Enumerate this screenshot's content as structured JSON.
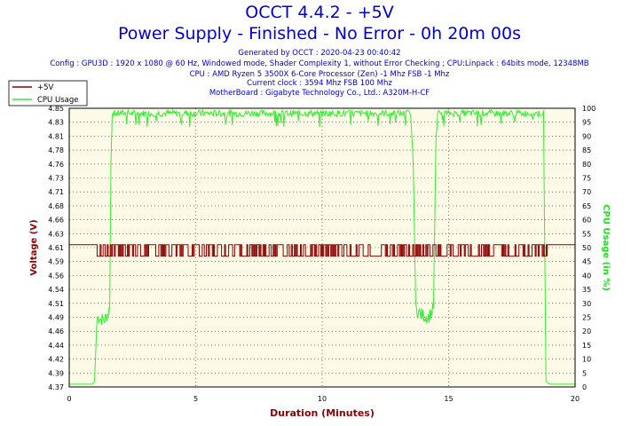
{
  "header": {
    "title": "OCCT 4.4.2 - +5V",
    "subtitle": "Power Supply - Finished - No Error - 0h 20m 00s",
    "lines": [
      "Generated by OCCT : 2020-04-23 00:40:42",
      "Config : GPU3D : 1920 x 1080 @ 60 Hz, Windowed mode, Shader Complexity 1, without Error Checking ; CPU:Linpack : 64bits mode, 12348MB",
      "CPU : AMD Ryzen 5 3500X 6-Core Processor (Zen) -1 Mhz FSB -1 Mhz",
      "Current clock : 3594 Mhz FSB 100 Mhz",
      "MotherBoard : Gigabyte Technology Co., Ltd.: A320M-H-CF"
    ]
  },
  "colors": {
    "voltage": "#8b0000",
    "cpu": "#33ee33",
    "plot_bg": "#fdfbe8",
    "grid": "#2a2a00",
    "left_axis": "#8b0000",
    "right_axis": "#22dd22",
    "x_axis_label": "#8b0000"
  },
  "chart_data": {
    "type": "line",
    "title": "OCCT 4.4.2 - +5V",
    "subtitle": "Power Supply - Finished - No Error - 0h 20m 00s",
    "xlabel": "Duration (Minutes)",
    "ylabel_left": "Voltage (V)",
    "ylabel_right": "CPU Usage (in %)",
    "xlim": [
      0,
      20
    ],
    "x_ticks": [
      "0",
      "5",
      "10",
      "15",
      "20"
    ],
    "ylim_left": [
      4.37,
      4.86
    ],
    "y_ticks_left": [
      "4.37",
      "4.39",
      "4.42",
      "4.44",
      "4.46",
      "4.49",
      "4.51",
      "4.54",
      "4.56",
      "4.59",
      "4.61",
      "4.63",
      "4.66",
      "4.68",
      "4.71",
      "4.73",
      "4.76",
      "4.78",
      "4.81",
      "4.83",
      "4.85"
    ],
    "ylim_right": [
      0,
      100
    ],
    "y_ticks_right": [
      "0",
      "5",
      "10",
      "15",
      "20",
      "25",
      "30",
      "35",
      "40",
      "45",
      "50",
      "55",
      "60",
      "65",
      "70",
      "75",
      "80",
      "85",
      "90",
      "95",
      "100"
    ],
    "grid": true,
    "legend_position": "top-left",
    "series": [
      {
        "name": "+5V",
        "axis": "left",
        "x": [
          0,
          1.1,
          1.15,
          18.85,
          18.9,
          20
        ],
        "y": [
          4.62,
          4.62,
          4.605,
          4.605,
          4.62,
          4.62
        ],
        "noise": "alternating 4.60 / 4.62 from 1.1 to 18.9 min"
      },
      {
        "name": "CPU Usage",
        "axis": "right",
        "x": [
          0,
          0.9,
          1.0,
          1.1,
          1.4,
          1.6,
          1.65,
          1.7,
          13.5,
          13.6,
          13.7,
          13.9,
          14.2,
          14.4,
          14.5,
          14.6,
          18.75,
          18.85,
          19.0,
          20
        ],
        "y": [
          1,
          1,
          2,
          25,
          24,
          28,
          80,
          98,
          98,
          80,
          28,
          26,
          25,
          28,
          90,
          98,
          98,
          2,
          1,
          1
        ]
      }
    ]
  }
}
